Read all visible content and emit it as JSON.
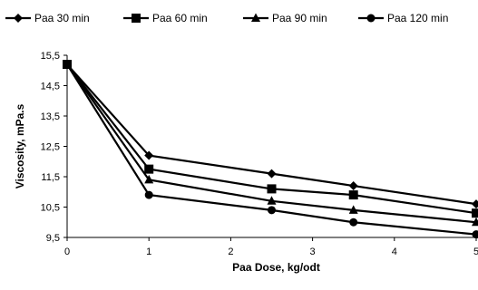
{
  "chart_data": {
    "type": "line",
    "title": "",
    "xlabel": "Paa Dose, kg/odt",
    "ylabel": "Viscosity, mPa.s",
    "xlim": [
      0,
      5
    ],
    "ylim": [
      9.5,
      15.5
    ],
    "xticks": [
      "0",
      "1",
      "2",
      "3",
      "4",
      "5"
    ],
    "yticks": [
      "9,5",
      "10,5",
      "11,5",
      "12,5",
      "13,5",
      "14,5",
      "15,5"
    ],
    "legend_position": "top",
    "grid": false,
    "series": [
      {
        "name": "Paa 30 min",
        "marker": "diamond",
        "x": [
          0,
          1,
          2.5,
          3.5,
          5
        ],
        "values": [
          15.2,
          12.2,
          11.6,
          11.2,
          10.6
        ]
      },
      {
        "name": "Paa 60 min",
        "marker": "square",
        "x": [
          0,
          1,
          2.5,
          3.5,
          5
        ],
        "values": [
          15.2,
          11.75,
          11.1,
          10.9,
          10.3
        ]
      },
      {
        "name": "Paa 90 min",
        "marker": "triangle",
        "x": [
          0,
          1,
          2.5,
          3.5,
          5
        ],
        "values": [
          15.2,
          11.4,
          10.7,
          10.4,
          10.0
        ]
      },
      {
        "name": "Paa 120 min",
        "marker": "circle",
        "x": [
          0,
          1,
          2.5,
          3.5,
          5
        ],
        "values": [
          15.2,
          10.9,
          10.4,
          10.0,
          9.6
        ]
      }
    ],
    "colors": {
      "line": "#000000",
      "axis": "#000000",
      "background": "#ffffff"
    }
  }
}
